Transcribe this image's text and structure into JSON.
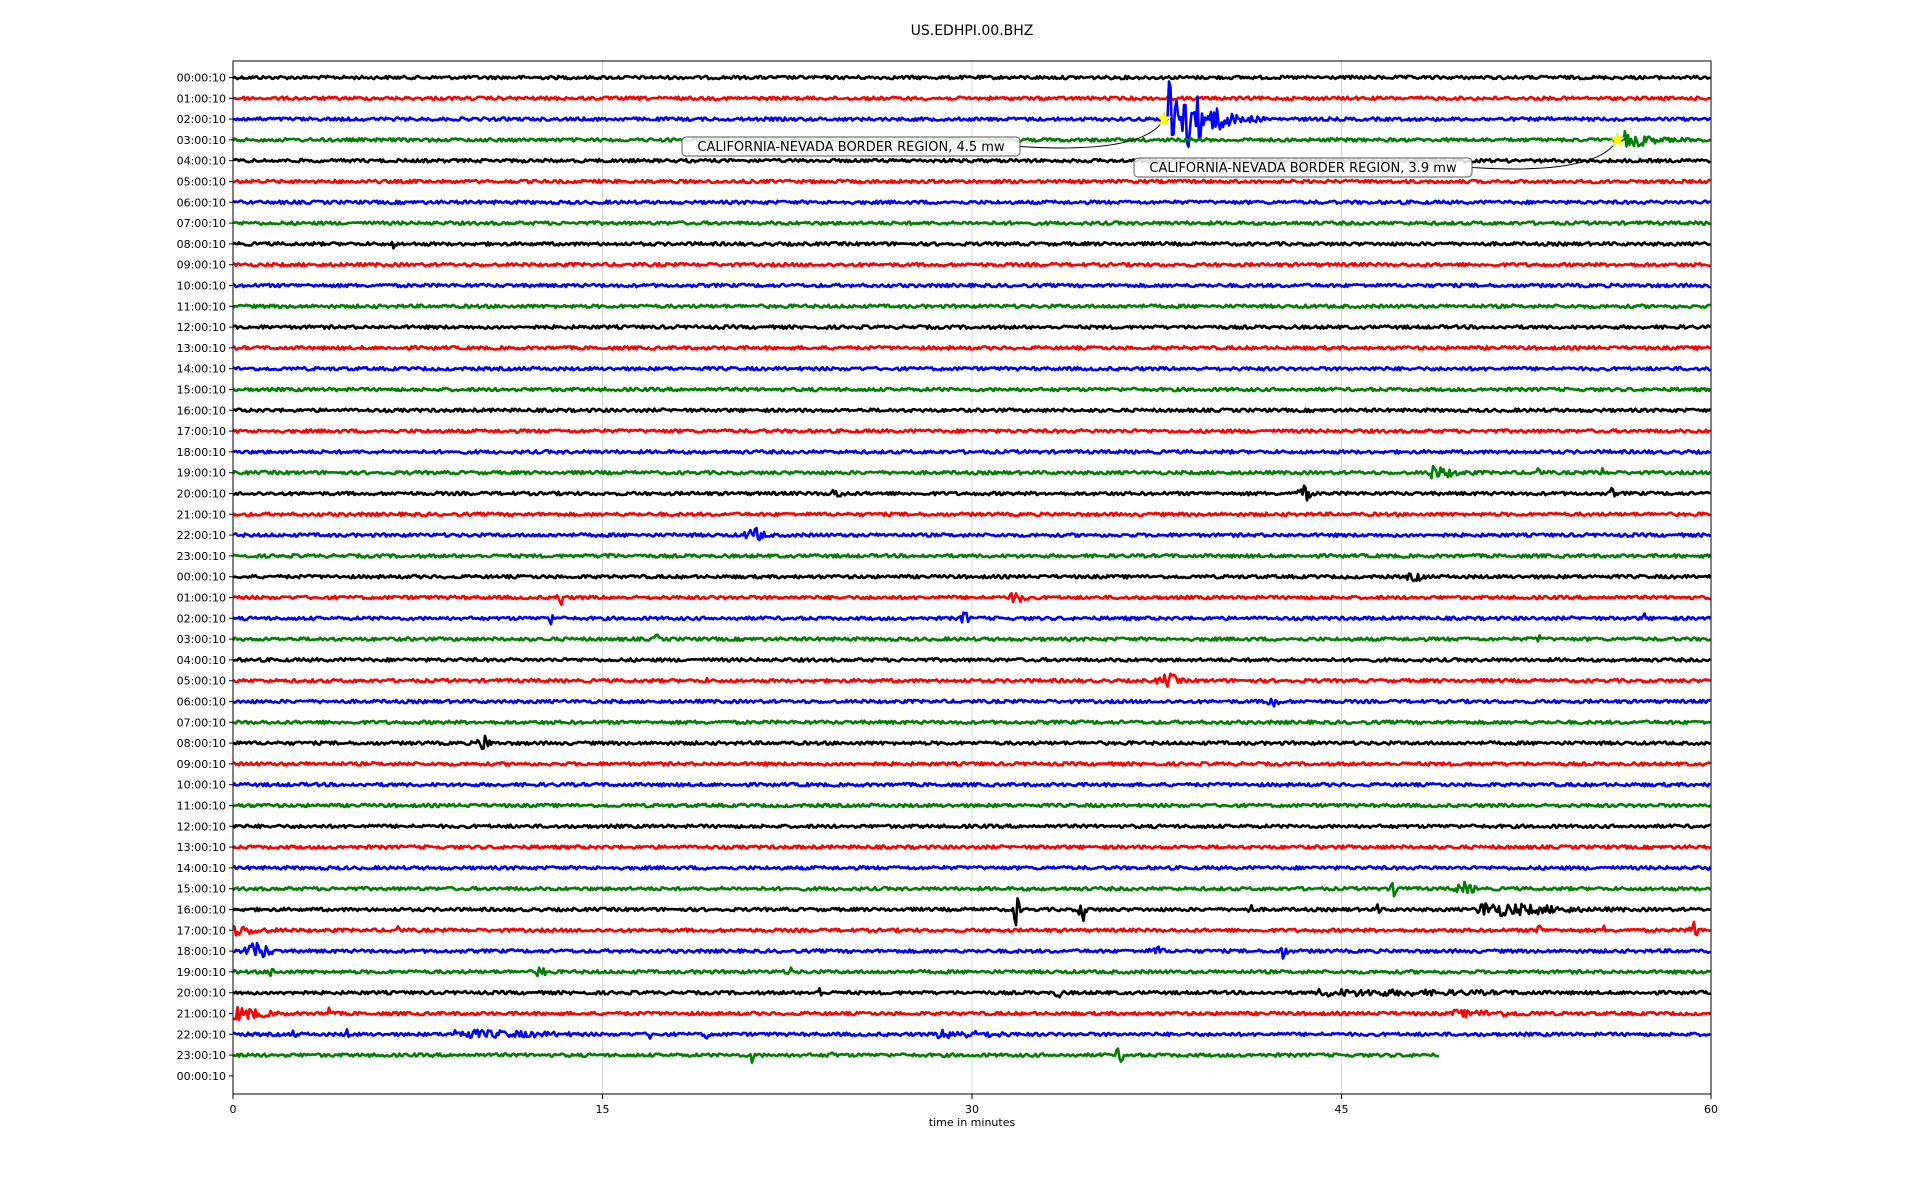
{
  "chart_data": {
    "type": "line",
    "title": "US.EDHPI.00.BHZ",
    "xlabel": "time in minutes",
    "xlim": [
      0,
      60
    ],
    "x_ticks": [
      "0",
      "15",
      "30",
      "45",
      "60"
    ],
    "grid": "vertical lines at x ticks",
    "trace_colors": [
      "#000000",
      "#ff0000",
      "#0000ff",
      "#008000"
    ],
    "row_labels": [
      "00:00:10",
      "01:00:10",
      "02:00:10",
      "03:00:10",
      "04:00:10",
      "05:00:10",
      "06:00:10",
      "07:00:10",
      "08:00:10",
      "09:00:10",
      "10:00:10",
      "11:00:10",
      "12:00:10",
      "13:00:10",
      "14:00:10",
      "15:00:10",
      "16:00:10",
      "17:00:10",
      "18:00:10",
      "19:00:10",
      "20:00:10",
      "21:00:10",
      "22:00:10",
      "23:00:10",
      "00:00:10",
      "01:00:10",
      "02:00:10",
      "03:00:10",
      "04:00:10",
      "05:00:10",
      "06:00:10",
      "07:00:10",
      "08:00:10",
      "09:00:10",
      "10:00:10",
      "11:00:10",
      "12:00:10",
      "13:00:10",
      "14:00:10",
      "15:00:10",
      "16:00:10",
      "17:00:10",
      "18:00:10",
      "19:00:10",
      "20:00:10",
      "21:00:10",
      "22:00:10",
      "23:00:10",
      "00:00:10"
    ],
    "last_trace_end_minute": 49,
    "events": [
      {
        "row": 2,
        "minute": 37.8,
        "label": "CALIFORNIA-NEVADA BORDER REGION, 4.5 mw"
      },
      {
        "row": 3,
        "minute": 56.2,
        "label": "CALIFORNIA-NEVADA BORDER REGION, 3.9 mw"
      }
    ],
    "marker_color": "#ffff00",
    "bursts": [
      {
        "row": 2,
        "minute": 39.2,
        "amp": 45,
        "dur": 2.5
      },
      {
        "row": 2,
        "minute": 41.5,
        "amp": 6,
        "dur": 2.5
      },
      {
        "row": 3,
        "minute": 57.5,
        "amp": 9,
        "dur": 2
      },
      {
        "row": 8,
        "minute": 6.5,
        "amp": 6,
        "dur": 0.2
      },
      {
        "row": 19,
        "minute": 49.5,
        "amp": 8,
        "dur": 2
      },
      {
        "row": 19,
        "minute": 53,
        "amp": 10,
        "dur": 0.3
      },
      {
        "row": 19,
        "minute": 55.5,
        "amp": 8,
        "dur": 0.5
      },
      {
        "row": 20,
        "minute": 24.5,
        "amp": 5,
        "dur": 1.5
      },
      {
        "row": 20,
        "minute": 43.5,
        "amp": 9,
        "dur": 1
      },
      {
        "row": 20,
        "minute": 56,
        "amp": 8,
        "dur": 0.3
      },
      {
        "row": 22,
        "minute": 21.2,
        "amp": 8,
        "dur": 1.5
      },
      {
        "row": 23,
        "minute": 15.2,
        "amp": 4,
        "dur": 1
      },
      {
        "row": 24,
        "minute": 48,
        "amp": 5,
        "dur": 1.5
      },
      {
        "row": 25,
        "minute": 13.3,
        "amp": 10,
        "dur": 0.5
      },
      {
        "row": 25,
        "minute": 31.8,
        "amp": 6,
        "dur": 1.5
      },
      {
        "row": 26,
        "minute": 12.9,
        "amp": 8,
        "dur": 0.3
      },
      {
        "row": 26,
        "minute": 29.7,
        "amp": 10,
        "dur": 0.5
      },
      {
        "row": 26,
        "minute": 57.3,
        "amp": 6,
        "dur": 0.3
      },
      {
        "row": 27,
        "minute": 17.2,
        "amp": 6,
        "dur": 0.4
      },
      {
        "row": 27,
        "minute": 53,
        "amp": 6,
        "dur": 0.4
      },
      {
        "row": 29,
        "minute": 19.2,
        "amp": 4,
        "dur": 0.3
      },
      {
        "row": 29,
        "minute": 38,
        "amp": 8,
        "dur": 1.5
      },
      {
        "row": 30,
        "minute": 42.2,
        "amp": 8,
        "dur": 0.8
      },
      {
        "row": 32,
        "minute": 10.2,
        "amp": 10,
        "dur": 0.8
      },
      {
        "row": 39,
        "minute": 47.2,
        "amp": 10,
        "dur": 0.6
      },
      {
        "row": 39,
        "minute": 50,
        "amp": 7,
        "dur": 1.5
      },
      {
        "row": 40,
        "minute": 31.8,
        "amp": 20,
        "dur": 0.4
      },
      {
        "row": 40,
        "minute": 34.5,
        "amp": 14,
        "dur": 0.5
      },
      {
        "row": 40,
        "minute": 41.3,
        "amp": 8,
        "dur": 0.3
      },
      {
        "row": 40,
        "minute": 46.5,
        "amp": 7,
        "dur": 0.3
      },
      {
        "row": 40,
        "minute": 53.5,
        "amp": 8,
        "dur": 6
      },
      {
        "row": 41,
        "minute": 0.7,
        "amp": 8,
        "dur": 3
      },
      {
        "row": 41,
        "minute": 6.7,
        "amp": 8,
        "dur": 0.3
      },
      {
        "row": 41,
        "minute": 53,
        "amp": 9,
        "dur": 0.4
      },
      {
        "row": 41,
        "minute": 55.6,
        "amp": 8,
        "dur": 0.3
      },
      {
        "row": 41,
        "minute": 59.3,
        "amp": 16,
        "dur": 0.5
      },
      {
        "row": 42,
        "minute": 1,
        "amp": 10,
        "dur": 1.8
      },
      {
        "row": 42,
        "minute": 37.5,
        "amp": 6,
        "dur": 1
      },
      {
        "row": 42,
        "minute": 42.6,
        "amp": 9,
        "dur": 0.6
      },
      {
        "row": 43,
        "minute": 1.6,
        "amp": 8,
        "dur": 0.5
      },
      {
        "row": 43,
        "minute": 12.5,
        "amp": 10,
        "dur": 0.5
      },
      {
        "row": 43,
        "minute": 19.1,
        "amp": 6,
        "dur": 0.3
      },
      {
        "row": 43,
        "minute": 22.6,
        "amp": 9,
        "dur": 0.3
      },
      {
        "row": 44,
        "minute": 2.4,
        "amp": 10,
        "dur": 0.3
      },
      {
        "row": 44,
        "minute": 23.8,
        "amp": 8,
        "dur": 0.3
      },
      {
        "row": 44,
        "minute": 33.5,
        "amp": 7,
        "dur": 0.5
      },
      {
        "row": 44,
        "minute": 52,
        "amp": 4,
        "dur": 16
      },
      {
        "row": 45,
        "minute": 1,
        "amp": 9,
        "dur": 2.5
      },
      {
        "row": 45,
        "minute": 3.9,
        "amp": 9,
        "dur": 0.3
      },
      {
        "row": 45,
        "minute": 53,
        "amp": 4,
        "dur": 7
      },
      {
        "row": 46,
        "minute": 2.5,
        "amp": 7,
        "dur": 0.3
      },
      {
        "row": 46,
        "minute": 4.6,
        "amp": 8,
        "dur": 0.3
      },
      {
        "row": 46,
        "minute": 13,
        "amp": 5,
        "dur": 8
      },
      {
        "row": 46,
        "minute": 17,
        "amp": 8,
        "dur": 0.4
      },
      {
        "row": 46,
        "minute": 19.2,
        "amp": 8,
        "dur": 0.3
      },
      {
        "row": 46,
        "minute": 31,
        "amp": 5,
        "dur": 5
      },
      {
        "row": 47,
        "minute": 21.1,
        "amp": 10,
        "dur": 0.3
      },
      {
        "row": 47,
        "minute": 24.3,
        "amp": 7,
        "dur": 0.3
      },
      {
        "row": 47,
        "minute": 36,
        "amp": 9,
        "dur": 0.6
      }
    ]
  }
}
